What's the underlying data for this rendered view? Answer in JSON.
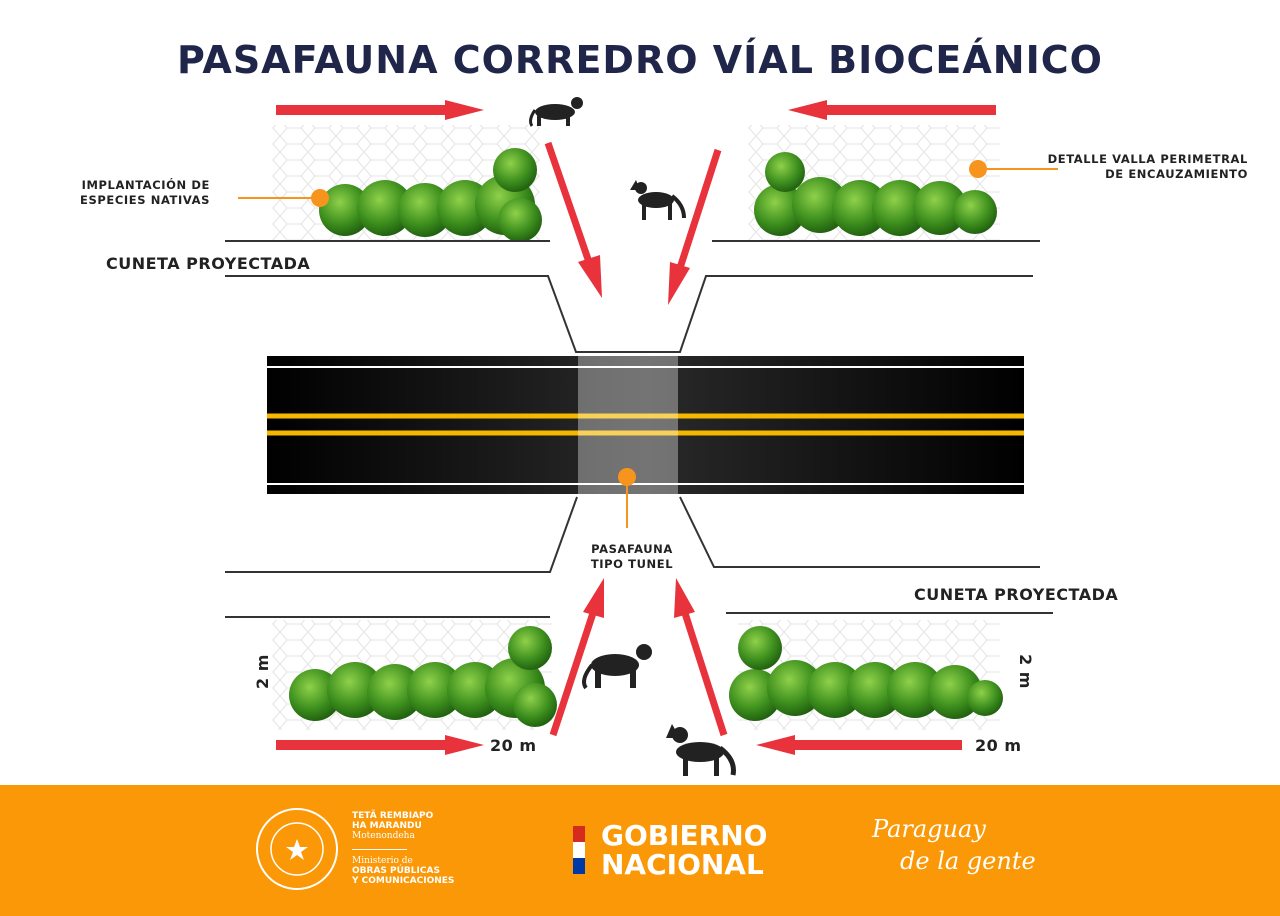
{
  "title": "PASAFAUNA CORREDRO VÍAL BIOCEÁNICO",
  "labels": {
    "native_species": [
      "IMPLANTACIÓN DE",
      "ESPECIES NATIVAS"
    ],
    "fence_detail": [
      "DETALLE VALLA PERIMETRAL",
      "DE ENCAUZAMIENTO"
    ],
    "cuneta_top": "CUNETA PROYECTADA",
    "cuneta_bottom": "CUNETA PROYECTADA",
    "tunnel": [
      "PASAFAUNA",
      "TIPO TUNEL"
    ],
    "height_left": "2 m",
    "height_right": "2 m",
    "width_left": "20 m",
    "width_right": "20 m"
  },
  "colors": {
    "title": "#20254a",
    "arrow": "#e8323c",
    "marker": "#f7941d",
    "road": "#0c0c0c",
    "road_center_line": "#f5b800",
    "footer": "#fb9807",
    "vegetation": "#3d8f1e"
  },
  "footer": {
    "seal_text": "REPÚBLICA DEL PARAGUAY",
    "tagline": [
      "TETÃ REMBIAPO",
      "HA MARANDU",
      "Motenondeha"
    ],
    "ministry": [
      "Ministerio de",
      "OBRAS PÚBLICAS",
      "Y COMUNICACIONES"
    ],
    "gobierno": [
      "GOBIERNO",
      "NACIONAL"
    ],
    "slogan": [
      "Paraguay",
      "de la gente"
    ]
  }
}
